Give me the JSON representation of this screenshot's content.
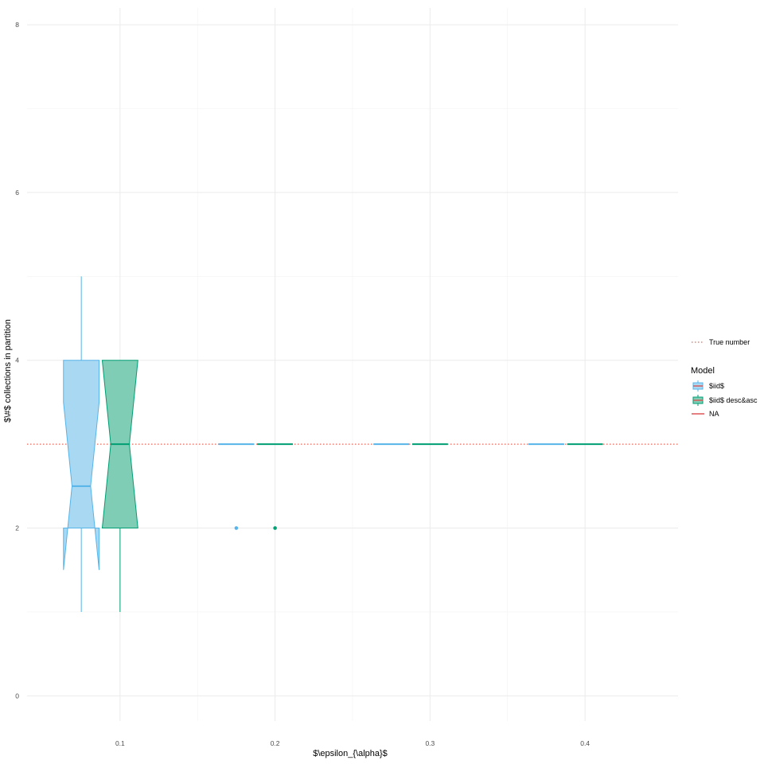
{
  "chart_data": {
    "type": "boxplot",
    "xlabel": "$\\epsilon_{\\alpha}$",
    "ylabel": "$\\#$ collections in partition",
    "x_ticks": [
      0.1,
      0.2,
      0.3,
      0.4
    ],
    "x_tick_labels": [
      "0.1",
      "0.2",
      "0.3",
      "0.4"
    ],
    "y_ticks": [
      0,
      2,
      4,
      6,
      8
    ],
    "y_tick_labels": [
      "0",
      "2",
      "4",
      "6",
      "8"
    ],
    "xlim": [
      0.04,
      0.46
    ],
    "ylim": [
      -0.3,
      8.2
    ],
    "grid": true,
    "notched": true,
    "true_number": 3,
    "series": [
      {
        "name": "$iid$",
        "fill": "#a9d8f2",
        "stroke": "#56b4e9",
        "boxes": [
          {
            "x": 0.075,
            "lower_whisker": 1,
            "q1": 2,
            "median": 2.5,
            "q3": 4,
            "upper_whisker": 5,
            "notch_low": 1.5,
            "notch_high": 3.5,
            "outliers": []
          },
          {
            "x": 0.175,
            "lower_whisker": 3,
            "q1": 3,
            "median": 3,
            "q3": 3,
            "upper_whisker": 3,
            "notch_low": 3,
            "notch_high": 3,
            "outliers": [
              2
            ]
          },
          {
            "x": 0.275,
            "lower_whisker": 3,
            "q1": 3,
            "median": 3,
            "q3": 3,
            "upper_whisker": 3,
            "notch_low": 3,
            "notch_high": 3,
            "outliers": []
          },
          {
            "x": 0.375,
            "lower_whisker": 3,
            "q1": 3,
            "median": 3,
            "q3": 3,
            "upper_whisker": 3,
            "notch_low": 3,
            "notch_high": 3,
            "outliers": []
          }
        ]
      },
      {
        "name": "$iid$ desc&asc",
        "fill": "#80cdb5",
        "stroke": "#009e73",
        "boxes": [
          {
            "x": 0.1,
            "lower_whisker": 1,
            "q1": 2,
            "median": 3,
            "q3": 4,
            "upper_whisker": 4,
            "notch_low": 2,
            "notch_high": 4,
            "outliers": []
          },
          {
            "x": 0.2,
            "lower_whisker": 3,
            "q1": 3,
            "median": 3,
            "q3": 3,
            "upper_whisker": 3,
            "notch_low": 3,
            "notch_high": 3,
            "outliers": [
              2
            ]
          },
          {
            "x": 0.3,
            "lower_whisker": 3,
            "q1": 3,
            "median": 3,
            "q3": 3,
            "upper_whisker": 3,
            "notch_low": 3,
            "notch_high": 3,
            "outliers": []
          },
          {
            "x": 0.4,
            "lower_whisker": 3,
            "q1": 3,
            "median": 3,
            "q3": 3,
            "upper_whisker": 3,
            "notch_low": 3,
            "notch_high": 3,
            "outliers": []
          }
        ]
      }
    ],
    "legend": {
      "placement": "right",
      "line_entry": {
        "label": "True number",
        "color": "#e8685a",
        "style": "dotted"
      },
      "title": "Model",
      "entries": [
        {
          "label": "$iid$",
          "fill": "#a9d8f2",
          "stroke": "#56b4e9",
          "median_color": "#d9534f"
        },
        {
          "label": "$iid$ desc&asc",
          "fill": "#80cdb5",
          "stroke": "#009e73",
          "median_color": "#d9534f"
        },
        {
          "label": "NA",
          "type": "line",
          "color": "#cc0000"
        }
      ]
    }
  }
}
